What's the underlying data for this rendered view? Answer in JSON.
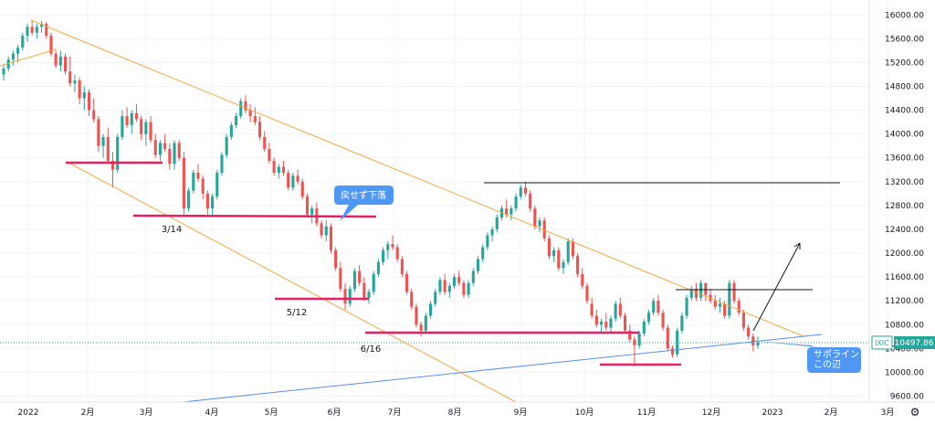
{
  "chart_data": {
    "type": "candlestick",
    "symbol": "IXIC",
    "last_price": "10497.86",
    "y_ticks": [
      "16000.00",
      "15600.00",
      "15200.00",
      "14800.00",
      "14400.00",
      "14000.00",
      "13600.00",
      "13200.00",
      "12800.00",
      "12400.00",
      "12000.00",
      "11600.00",
      "11200.00",
      "10800.00",
      "10400.00",
      "10000.00",
      "9600.00"
    ],
    "ylim": [
      9500,
      16250
    ],
    "x_ticks": [
      "2022",
      "2月",
      "3月",
      "4月",
      "5月",
      "6月",
      "7月",
      "8月",
      "9月",
      "10月",
      "11月",
      "12月",
      "2023",
      "2月",
      "3月"
    ],
    "annotations": [
      "3/14",
      "5/12",
      "6/16"
    ],
    "callouts": [
      "戻せず下落",
      "サポライン\nこの辺"
    ],
    "colors": {
      "up": "#26a69a",
      "down": "#ef5350",
      "channel": "#f7a741",
      "support": "#e91e63",
      "trend": "#5b8def",
      "resistance": "#131722",
      "callout": "#4f97f5"
    },
    "candles": [
      [
        15000,
        15150,
        14900,
        15100
      ],
      [
        15100,
        15300,
        15050,
        15250
      ],
      [
        15250,
        15400,
        15150,
        15350
      ],
      [
        15350,
        15500,
        15200,
        15450
      ],
      [
        15450,
        15700,
        15400,
        15650
      ],
      [
        15650,
        15850,
        15550,
        15800
      ],
      [
        15800,
        15900,
        15650,
        15700
      ],
      [
        15700,
        15850,
        15600,
        15800
      ],
      [
        15800,
        15900,
        15700,
        15850
      ],
      [
        15850,
        15880,
        15600,
        15650
      ],
      [
        15650,
        15700,
        15300,
        15350
      ],
      [
        15350,
        15400,
        15100,
        15150
      ],
      [
        15150,
        15400,
        15050,
        15300
      ],
      [
        15300,
        15350,
        15000,
        15050
      ],
      [
        15050,
        15300,
        14800,
        14850
      ],
      [
        14850,
        15000,
        14700,
        14900
      ],
      [
        14900,
        14950,
        14500,
        14600
      ],
      [
        14600,
        14800,
        14400,
        14700
      ],
      [
        14700,
        14750,
        14300,
        14400
      ],
      [
        14400,
        14600,
        14200,
        14250
      ],
      [
        14250,
        14300,
        13700,
        13800
      ],
      [
        13800,
        14000,
        13600,
        13950
      ],
      [
        13950,
        14100,
        13500,
        13550
      ],
      [
        13550,
        13700,
        13100,
        13400
      ],
      [
        13400,
        14000,
        13350,
        13950
      ],
      [
        13950,
        14400,
        13900,
        14300
      ],
      [
        14300,
        14450,
        14100,
        14150
      ],
      [
        14150,
        14400,
        14000,
        14350
      ],
      [
        14350,
        14500,
        14200,
        14250
      ],
      [
        14250,
        14300,
        13900,
        14000
      ],
      [
        14000,
        14250,
        13800,
        14200
      ],
      [
        14200,
        14300,
        13850,
        13900
      ],
      [
        13900,
        14000,
        13600,
        13650
      ],
      [
        13650,
        13900,
        13550,
        13850
      ],
      [
        13850,
        14000,
        13700,
        13750
      ],
      [
        13750,
        13850,
        13400,
        13500
      ],
      [
        13500,
        13900,
        13400,
        13850
      ],
      [
        13850,
        13900,
        13550,
        13600
      ],
      [
        13600,
        13700,
        12650,
        12750
      ],
      [
        12750,
        13100,
        12700,
        13050
      ],
      [
        13050,
        13400,
        13000,
        13350
      ],
      [
        13350,
        13500,
        13200,
        13250
      ],
      [
        13250,
        13300,
        12900,
        13000
      ],
      [
        13000,
        13050,
        12650,
        12750
      ],
      [
        12750,
        13000,
        12600,
        12950
      ],
      [
        12950,
        13400,
        12900,
        13350
      ],
      [
        13350,
        13700,
        13300,
        13650
      ],
      [
        13650,
        14000,
        13600,
        13950
      ],
      [
        13950,
        14200,
        13900,
        14150
      ],
      [
        14150,
        14350,
        14100,
        14300
      ],
      [
        14300,
        14600,
        14250,
        14550
      ],
      [
        14550,
        14650,
        14350,
        14400
      ],
      [
        14400,
        14500,
        14200,
        14300
      ],
      [
        14300,
        14450,
        14150,
        14200
      ],
      [
        14200,
        14300,
        13900,
        13950
      ],
      [
        13950,
        14050,
        13700,
        13750
      ],
      [
        13750,
        13850,
        13500,
        13550
      ],
      [
        13550,
        13600,
        13300,
        13350
      ],
      [
        13350,
        13500,
        13250,
        13450
      ],
      [
        13450,
        13550,
        13300,
        13350
      ],
      [
        13350,
        13400,
        13050,
        13100
      ],
      [
        13100,
        13350,
        13050,
        13300
      ],
      [
        13300,
        13400,
        13150,
        13200
      ],
      [
        13200,
        13250,
        12900,
        12950
      ],
      [
        12950,
        13000,
        12600,
        12650
      ],
      [
        12650,
        12800,
        12500,
        12750
      ],
      [
        12750,
        12850,
        12450,
        12500
      ],
      [
        12500,
        12550,
        12250,
        12300
      ],
      [
        12300,
        12550,
        12200,
        12450
      ],
      [
        12450,
        12500,
        12000,
        12050
      ],
      [
        12050,
        12100,
        11700,
        11750
      ],
      [
        11750,
        11850,
        11350,
        11400
      ],
      [
        11400,
        11500,
        11050,
        11150
      ],
      [
        11150,
        11450,
        11100,
        11400
      ],
      [
        11400,
        11750,
        11350,
        11700
      ],
      [
        11700,
        11800,
        11450,
        11500
      ],
      [
        11500,
        11600,
        11200,
        11250
      ],
      [
        11250,
        11400,
        11150,
        11350
      ],
      [
        11350,
        11700,
        11300,
        11650
      ],
      [
        11650,
        11900,
        11600,
        11850
      ],
      [
        11850,
        12100,
        11800,
        12050
      ],
      [
        12050,
        12200,
        11900,
        12150
      ],
      [
        12150,
        12300,
        12050,
        12100
      ],
      [
        12100,
        12150,
        11850,
        11900
      ],
      [
        11900,
        11950,
        11600,
        11650
      ],
      [
        11650,
        11700,
        11300,
        11350
      ],
      [
        11350,
        11400,
        11050,
        11100
      ],
      [
        11100,
        11150,
        10750,
        10800
      ],
      [
        10800,
        10850,
        10600,
        10700
      ],
      [
        10700,
        11000,
        10650,
        10950
      ],
      [
        10950,
        11200,
        10900,
        11150
      ],
      [
        11150,
        11400,
        11100,
        11350
      ],
      [
        11350,
        11600,
        11300,
        11550
      ],
      [
        11550,
        11650,
        11300,
        11350
      ],
      [
        11350,
        11500,
        11250,
        11450
      ],
      [
        11450,
        11650,
        11400,
        11600
      ],
      [
        11600,
        11700,
        11450,
        11500
      ],
      [
        11500,
        11550,
        11250,
        11300
      ],
      [
        11300,
        11550,
        11250,
        11500
      ],
      [
        11500,
        11750,
        11450,
        11700
      ],
      [
        11700,
        11950,
        11650,
        11900
      ],
      [
        11900,
        12150,
        11850,
        12100
      ],
      [
        12100,
        12350,
        12050,
        12300
      ],
      [
        12300,
        12450,
        12200,
        12400
      ],
      [
        12400,
        12650,
        12350,
        12600
      ],
      [
        12600,
        12800,
        12550,
        12750
      ],
      [
        12750,
        12900,
        12600,
        12650
      ],
      [
        12650,
        12800,
        12550,
        12750
      ],
      [
        12750,
        13000,
        12700,
        12950
      ],
      [
        12950,
        13150,
        12900,
        13100
      ],
      [
        13100,
        13200,
        12950,
        13000
      ],
      [
        13000,
        13050,
        12700,
        12750
      ],
      [
        12750,
        12800,
        12400,
        12450
      ],
      [
        12450,
        12600,
        12350,
        12550
      ],
      [
        12550,
        12600,
        12200,
        12250
      ],
      [
        12250,
        12300,
        11900,
        11950
      ],
      [
        11950,
        12100,
        11850,
        12050
      ],
      [
        12050,
        12100,
        11700,
        11750
      ],
      [
        11750,
        11900,
        11650,
        11850
      ],
      [
        11850,
        12250,
        11800,
        12200
      ],
      [
        12200,
        12250,
        11900,
        11950
      ],
      [
        11950,
        12000,
        11600,
        11650
      ],
      [
        11650,
        11750,
        11400,
        11450
      ],
      [
        11450,
        11500,
        11150,
        11200
      ],
      [
        11150,
        11250,
        10900,
        10950
      ],
      [
        10950,
        11050,
        10750,
        10800
      ],
      [
        10800,
        10900,
        10650,
        10850
      ],
      [
        10850,
        11000,
        10700,
        10750
      ],
      [
        10750,
        10950,
        10650,
        10900
      ],
      [
        10900,
        11200,
        10850,
        11150
      ],
      [
        11150,
        11250,
        10900,
        10950
      ],
      [
        10950,
        11000,
        10650,
        10700
      ],
      [
        10700,
        10800,
        10500,
        10550
      ],
      [
        10550,
        10600,
        10100,
        10450
      ],
      [
        10450,
        10700,
        10400,
        10650
      ],
      [
        10650,
        10900,
        10600,
        10850
      ],
      [
        10850,
        11050,
        10800,
        11000
      ],
      [
        11000,
        11250,
        10950,
        11200
      ],
      [
        11200,
        11300,
        10950,
        11000
      ],
      [
        11000,
        11050,
        10700,
        10750
      ],
      [
        10750,
        10800,
        10350,
        10400
      ],
      [
        10400,
        10450,
        10250,
        10300
      ],
      [
        10300,
        10750,
        10250,
        10700
      ],
      [
        10700,
        11000,
        10650,
        10950
      ],
      [
        10950,
        11300,
        10900,
        11250
      ],
      [
        11250,
        11450,
        11200,
        11400
      ],
      [
        11400,
        11500,
        11200,
        11250
      ],
      [
        11250,
        11550,
        11200,
        11500
      ],
      [
        11500,
        11450,
        11200,
        11300
      ],
      [
        11300,
        11400,
        11150,
        11200
      ],
      [
        11200,
        11300,
        11050,
        11100
      ],
      [
        11100,
        11250,
        11000,
        11150
      ],
      [
        11150,
        11200,
        10900,
        10950
      ],
      [
        10950,
        11550,
        10900,
        11500
      ],
      [
        11500,
        11550,
        11150,
        11200
      ],
      [
        11200,
        11250,
        10950,
        11000
      ],
      [
        11000,
        11050,
        10700,
        10750
      ],
      [
        10750,
        10800,
        10550,
        10600
      ],
      [
        10600,
        10650,
        10350,
        10450
      ],
      [
        10450,
        10600,
        10400,
        10497.86
      ]
    ]
  }
}
